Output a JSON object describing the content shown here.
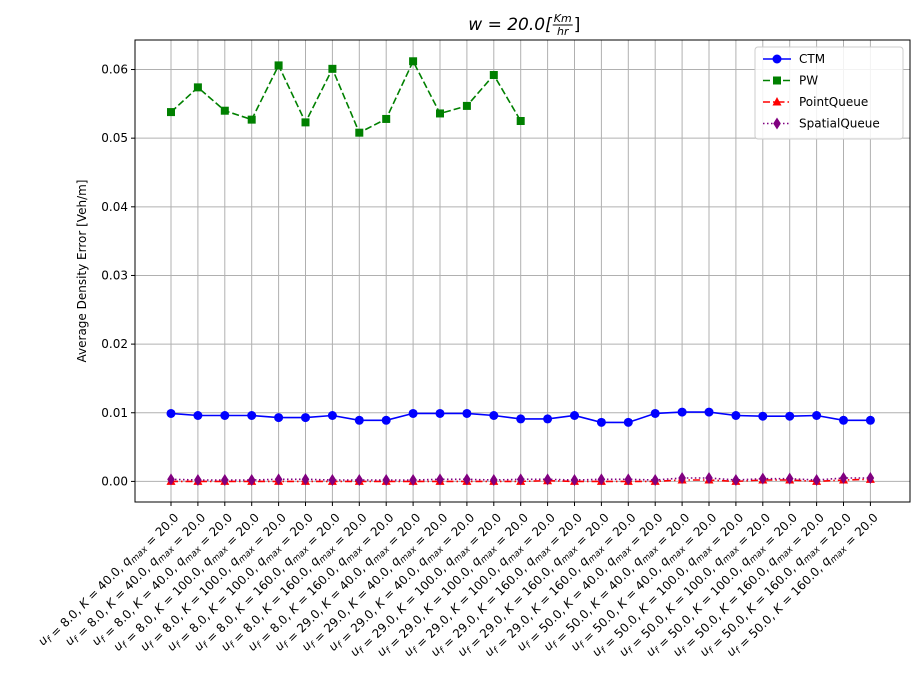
{
  "chart_data": {
    "type": "line",
    "title": "w = 20.0[Km/hr]",
    "title_parts": {
      "lhs": "w = 20.0[",
      "num": "Km",
      "den": "hr",
      "rhs": "]"
    },
    "xlabel": "",
    "ylabel": "Average Density Error [Veh/m]",
    "ylim": [
      -0.003,
      0.0643
    ],
    "yticks": [
      0.0,
      0.01,
      0.02,
      0.03,
      0.04,
      0.05,
      0.06
    ],
    "ytick_labels": [
      "0.00",
      "0.01",
      "0.02",
      "0.03",
      "0.04",
      "0.05",
      "0.06"
    ],
    "grid": true,
    "legend_position": "top-right",
    "categories": [
      "u_f = 8.0, K = 40.0, q_max = 20.0",
      "u_f = 8.0, K = 40.0, q_max = 20.0",
      "u_f = 8.0, K = 40.0, q_max = 20.0",
      "u_f = 8.0, K = 100.0, q_max = 20.0",
      "u_f = 8.0, K = 100.0, q_max = 20.0",
      "u_f = 8.0, K = 100.0, q_max = 20.0",
      "u_f = 8.0, K = 160.0, q_max = 20.0",
      "u_f = 8.0, K = 160.0, q_max = 20.0",
      "u_f = 8.0, K = 160.0, q_max = 20.0",
      "u_f = 29.0, K = 40.0, q_max = 20.0",
      "u_f = 29.0, K = 40.0, q_max = 20.0",
      "u_f = 29.0, K = 40.0, q_max = 20.0",
      "u_f = 29.0, K = 100.0, q_max = 20.0",
      "u_f = 29.0, K = 100.0, q_max = 20.0",
      "u_f = 29.0, K = 100.0, q_max = 20.0",
      "u_f = 29.0, K = 160.0, q_max = 20.0",
      "u_f = 29.0, K = 160.0, q_max = 20.0",
      "u_f = 29.0, K = 160.0, q_max = 20.0",
      "u_f = 50.0, K = 40.0, q_max = 20.0",
      "u_f = 50.0, K = 40.0, q_max = 20.0",
      "u_f = 50.0, K = 40.0, q_max = 20.0",
      "u_f = 50.0, K = 100.0, q_max = 20.0",
      "u_f = 50.0, K = 100.0, q_max = 20.0",
      "u_f = 50.0, K = 100.0, q_max = 20.0",
      "u_f = 50.0, K = 160.0, q_max = 20.0",
      "u_f = 50.0, K = 160.0, q_max = 20.0",
      "u_f = 50.0, K = 160.0, q_max = 20.0"
    ],
    "category_parts": [
      [
        "8.0",
        "40.0",
        "20.0"
      ],
      [
        "8.0",
        "40.0",
        "20.0"
      ],
      [
        "8.0",
        "40.0",
        "20.0"
      ],
      [
        "8.0",
        "100.0",
        "20.0"
      ],
      [
        "8.0",
        "100.0",
        "20.0"
      ],
      [
        "8.0",
        "100.0",
        "20.0"
      ],
      [
        "8.0",
        "160.0",
        "20.0"
      ],
      [
        "8.0",
        "160.0",
        "20.0"
      ],
      [
        "8.0",
        "160.0",
        "20.0"
      ],
      [
        "29.0",
        "40.0",
        "20.0"
      ],
      [
        "29.0",
        "40.0",
        "20.0"
      ],
      [
        "29.0",
        "40.0",
        "20.0"
      ],
      [
        "29.0",
        "100.0",
        "20.0"
      ],
      [
        "29.0",
        "100.0",
        "20.0"
      ],
      [
        "29.0",
        "100.0",
        "20.0"
      ],
      [
        "29.0",
        "160.0",
        "20.0"
      ],
      [
        "29.0",
        "160.0",
        "20.0"
      ],
      [
        "29.0",
        "160.0",
        "20.0"
      ],
      [
        "50.0",
        "40.0",
        "20.0"
      ],
      [
        "50.0",
        "40.0",
        "20.0"
      ],
      [
        "50.0",
        "40.0",
        "20.0"
      ],
      [
        "50.0",
        "100.0",
        "20.0"
      ],
      [
        "50.0",
        "100.0",
        "20.0"
      ],
      [
        "50.0",
        "100.0",
        "20.0"
      ],
      [
        "50.0",
        "160.0",
        "20.0"
      ],
      [
        "50.0",
        "160.0",
        "20.0"
      ],
      [
        "50.0",
        "160.0",
        "20.0"
      ]
    ],
    "series": [
      {
        "name": "CTM",
        "color": "#0000ff",
        "marker": "circle",
        "linestyle": "solid",
        "values": [
          0.0099,
          0.0096,
          0.0096,
          0.0096,
          0.0093,
          0.0093,
          0.0096,
          0.0089,
          0.0089,
          0.0099,
          0.0099,
          0.0099,
          0.0096,
          0.0091,
          0.0091,
          0.0096,
          0.0086,
          0.0086,
          0.0099,
          0.0101,
          0.0101,
          0.0096,
          0.0095,
          0.0095,
          0.0096,
          0.0089,
          0.0089
        ]
      },
      {
        "name": "PW",
        "color": "#008000",
        "marker": "square",
        "linestyle": "dashed",
        "values": [
          0.0538,
          0.0574,
          0.054,
          0.0527,
          0.0606,
          0.0523,
          0.0601,
          0.0508,
          0.0528,
          0.0612,
          0.0536,
          0.0547,
          0.0592,
          0.0525,
          null,
          null,
          null,
          null,
          null,
          null,
          null,
          null,
          null,
          null,
          null,
          null,
          null
        ]
      },
      {
        "name": "PointQueue",
        "color": "#ff0000",
        "marker": "triangle-up",
        "linestyle": "dashdot",
        "values": [
          0.0,
          0.0,
          0.0,
          0.0,
          0.0,
          0.0,
          0.0,
          0.0,
          0.0,
          0.0,
          0.0,
          0.0,
          0.0,
          0.0,
          0.0001,
          0.0,
          0.0,
          0.0,
          0.0,
          0.0002,
          0.0002,
          0.0,
          0.0002,
          0.0002,
          0.0,
          0.0002,
          0.0003
        ]
      },
      {
        "name": "SpatialQueue",
        "color": "#800080",
        "marker": "diamond",
        "linestyle": "dotted",
        "values": [
          0.0003,
          0.0002,
          0.0002,
          0.0002,
          0.0003,
          0.0003,
          0.0002,
          0.0002,
          0.0002,
          0.0002,
          0.0003,
          0.0003,
          0.0002,
          0.0003,
          0.0003,
          0.0002,
          0.0003,
          0.0003,
          0.0002,
          0.0005,
          0.0005,
          0.0002,
          0.0004,
          0.0004,
          0.0002,
          0.0005,
          0.0005
        ]
      }
    ]
  }
}
